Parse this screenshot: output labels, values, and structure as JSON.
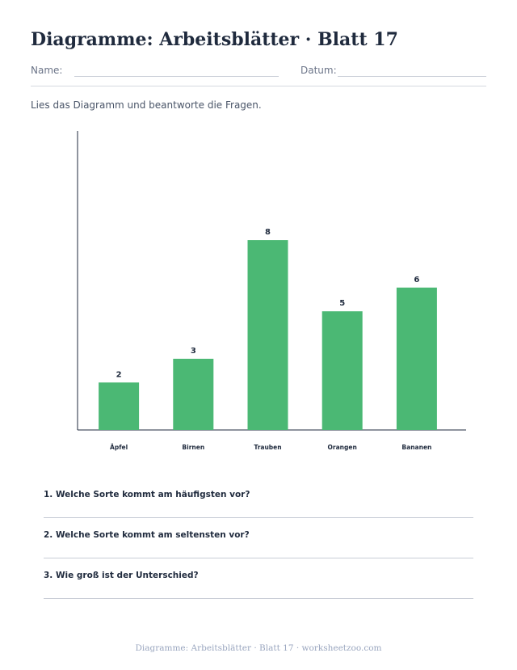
{
  "header": {
    "title": "Diagramme: Arbeitsblätter · Blatt 17",
    "name_label": "Name:",
    "date_label": "Datum:"
  },
  "instructions": "Lies das Diagramm und beantworte die Fragen.",
  "chart_data": {
    "type": "bar",
    "categories": [
      "Äpfel",
      "Birnen",
      "Trauben",
      "Orangen",
      "Bananen"
    ],
    "values": [
      2,
      3,
      8,
      5,
      6
    ],
    "title": "",
    "xlabel": "",
    "ylabel": "",
    "ylim": [
      0,
      12.6
    ],
    "grid": false,
    "bar_color": "#4bb874",
    "axis_color": "#1f2a3d"
  },
  "questions": [
    "1. Welche Sorte kommt am häufigsten vor?",
    "2. Welche Sorte kommt am seltensten vor?",
    "3. Wie groß ist der Unterschied?"
  ],
  "footer": "Diagramme: Arbeitsblätter · Blatt 17 · worksheetzoo.com"
}
